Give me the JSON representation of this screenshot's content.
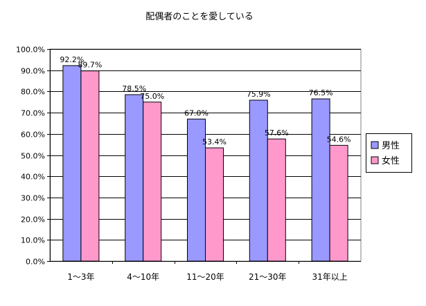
{
  "chart_data": {
    "type": "bar",
    "title": "配偶者のことを愛している",
    "categories": [
      "1〜3年",
      "4〜10年",
      "11〜20年",
      "21〜30年",
      "31年以上"
    ],
    "series": [
      {
        "name": "男性",
        "values": [
          92.2,
          78.5,
          67.0,
          75.9,
          76.5
        ],
        "color": "#9999ff",
        "labels": [
          "92.2%",
          "78.5%",
          "67.0%",
          "75.9%",
          "76.5%"
        ]
      },
      {
        "name": "女性",
        "values": [
          89.7,
          75.0,
          53.4,
          57.6,
          54.6
        ],
        "color": "#ff99cc",
        "labels": [
          "89.7%",
          "75.0%",
          "53.4%",
          "57.6%",
          "54.6%"
        ]
      }
    ],
    "ylim": [
      0,
      100
    ],
    "yticks": [
      0,
      10,
      20,
      30,
      40,
      50,
      60,
      70,
      80,
      90,
      100
    ],
    "ytick_labels": [
      "0.0%",
      "10.0%",
      "20.0%",
      "30.0%",
      "40.0%",
      "50.0%",
      "60.0%",
      "70.0%",
      "80.0%",
      "90.0%",
      "100.0%"
    ],
    "xlabel": "",
    "ylabel": "",
    "grid": true,
    "legend_position": "right",
    "plot_background": "#ffffff",
    "grid_color": "#000000",
    "bar_outline_color": "#000000"
  }
}
